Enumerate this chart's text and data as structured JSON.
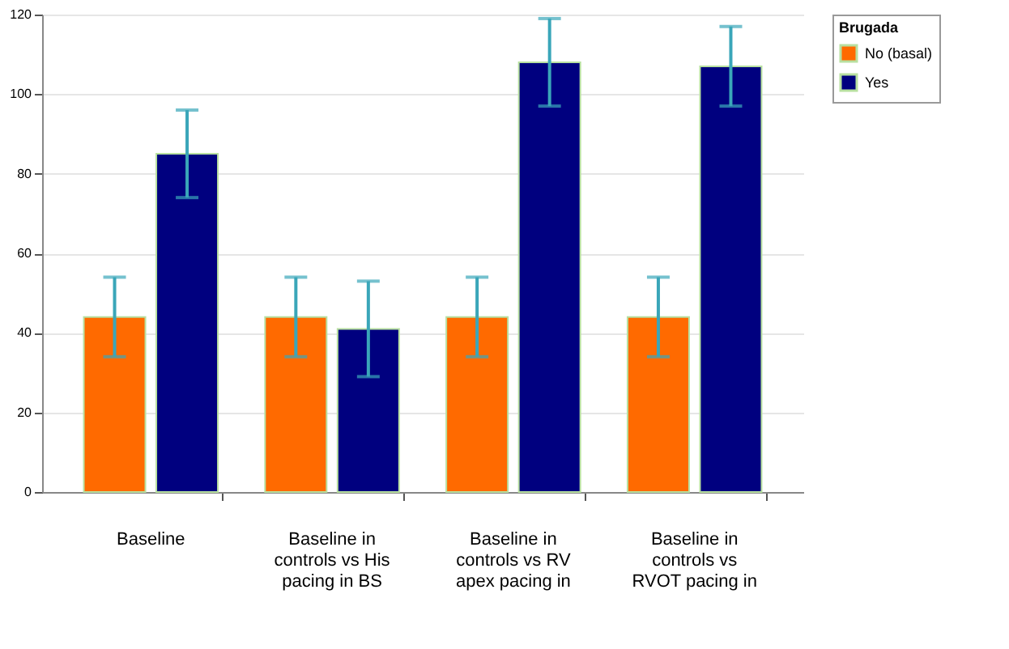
{
  "chart_data": {
    "type": "bar",
    "categories": [
      "Baseline",
      "Baseline in\ncontrols vs His\npacing in BS",
      "Baseline in\ncontrols vs RV\napex pacing in",
      "Baseline in\ncontrols vs\nRVOT pacing in"
    ],
    "series": [
      {
        "name": "No (basal)",
        "color": "#ff6a00",
        "values": [
          44,
          44,
          44,
          44
        ],
        "errors": [
          10,
          10,
          10,
          10
        ]
      },
      {
        "name": "Yes",
        "color": "#00007f",
        "values": [
          85,
          41,
          108,
          107
        ],
        "errors": [
          11,
          12,
          11,
          10
        ]
      }
    ],
    "legend_title": "Brugada",
    "legend": "right",
    "ylim": [
      0,
      120
    ],
    "yticks": [
      0,
      20,
      40,
      60,
      80,
      100,
      120
    ],
    "grid": "y"
  }
}
